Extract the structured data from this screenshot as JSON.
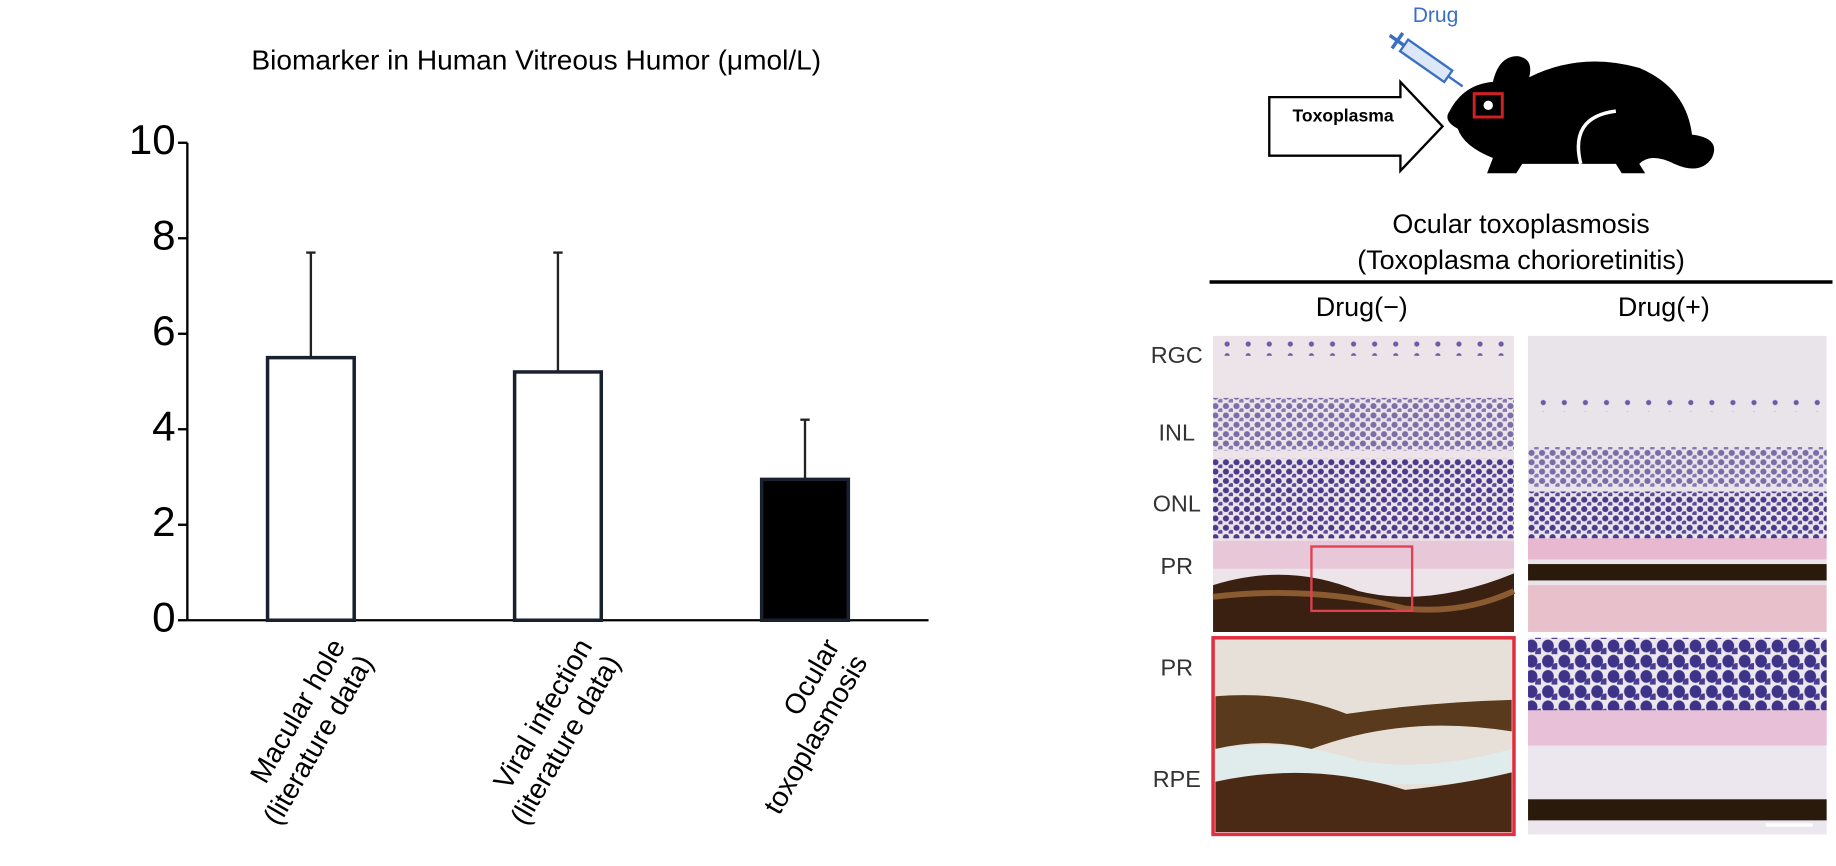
{
  "chart_data": {
    "type": "bar",
    "title": "Biomarker in Human Vitreous Humor (μmol/L)",
    "categories": [
      [
        "Macular hole",
        "(literature data)"
      ],
      [
        "Viral infection",
        "(literature data)"
      ],
      [
        "Ocular",
        "toxoplasmosis"
      ]
    ],
    "values": [
      5.5,
      5.2,
      2.95
    ],
    "errors": [
      2.2,
      2.5,
      1.25
    ],
    "colors": [
      "#ffffff",
      "#ffffff",
      "#000000"
    ],
    "edge_color": "#1a2030",
    "ylim": [
      0,
      10
    ],
    "yticks": [
      0,
      2,
      4,
      6,
      8,
      10
    ]
  },
  "figure": {
    "drug_label": "Drug",
    "arrow_label": "Toxoplasma",
    "title": [
      "Ocular toxoplasmosis",
      "(Toxoplasma chorioretinitis)"
    ],
    "columns": [
      "Drug(−)",
      "Drug(+)"
    ],
    "layers": [
      "RGC",
      "INL",
      "ONL",
      "PR"
    ],
    "zoom_layers": [
      "PR",
      "RPE"
    ]
  }
}
